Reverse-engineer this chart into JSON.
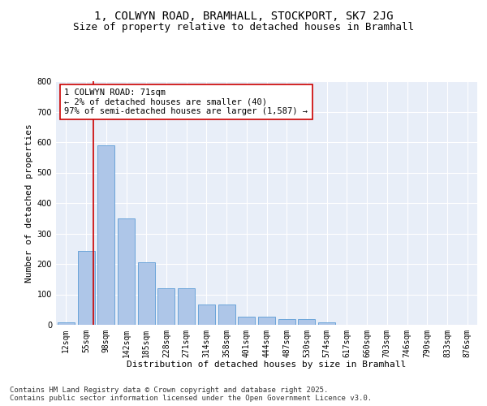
{
  "title_line1": "1, COLWYN ROAD, BRAMHALL, STOCKPORT, SK7 2JG",
  "title_line2": "Size of property relative to detached houses in Bramhall",
  "xlabel": "Distribution of detached houses by size in Bramhall",
  "ylabel": "Number of detached properties",
  "categories": [
    "12sqm",
    "55sqm",
    "98sqm",
    "142sqm",
    "185sqm",
    "228sqm",
    "271sqm",
    "314sqm",
    "358sqm",
    "401sqm",
    "444sqm",
    "487sqm",
    "530sqm",
    "574sqm",
    "617sqm",
    "660sqm",
    "703sqm",
    "746sqm",
    "790sqm",
    "833sqm",
    "876sqm"
  ],
  "values": [
    8,
    242,
    590,
    350,
    205,
    120,
    120,
    68,
    68,
    28,
    28,
    18,
    18,
    7,
    0,
    0,
    0,
    0,
    0,
    0,
    0
  ],
  "bar_color": "#aec6e8",
  "bar_edge_color": "#5b9bd5",
  "vline_x": 1.38,
  "vline_color": "#cc0000",
  "annotation_text": "1 COLWYN ROAD: 71sqm\n← 2% of detached houses are smaller (40)\n97% of semi-detached houses are larger (1,587) →",
  "annotation_box_color": "#ffffff",
  "annotation_box_edge_color": "#cc0000",
  "footer_text": "Contains HM Land Registry data © Crown copyright and database right 2025.\nContains public sector information licensed under the Open Government Licence v3.0.",
  "ylim": [
    0,
    800
  ],
  "yticks": [
    0,
    100,
    200,
    300,
    400,
    500,
    600,
    700,
    800
  ],
  "fig_bg_color": "#ffffff",
  "plot_bg_color": "#e8eef8",
  "title_fontsize": 10,
  "subtitle_fontsize": 9,
  "axis_label_fontsize": 8,
  "tick_fontsize": 7,
  "footer_fontsize": 6.5,
  "annotation_fontsize": 7.5
}
